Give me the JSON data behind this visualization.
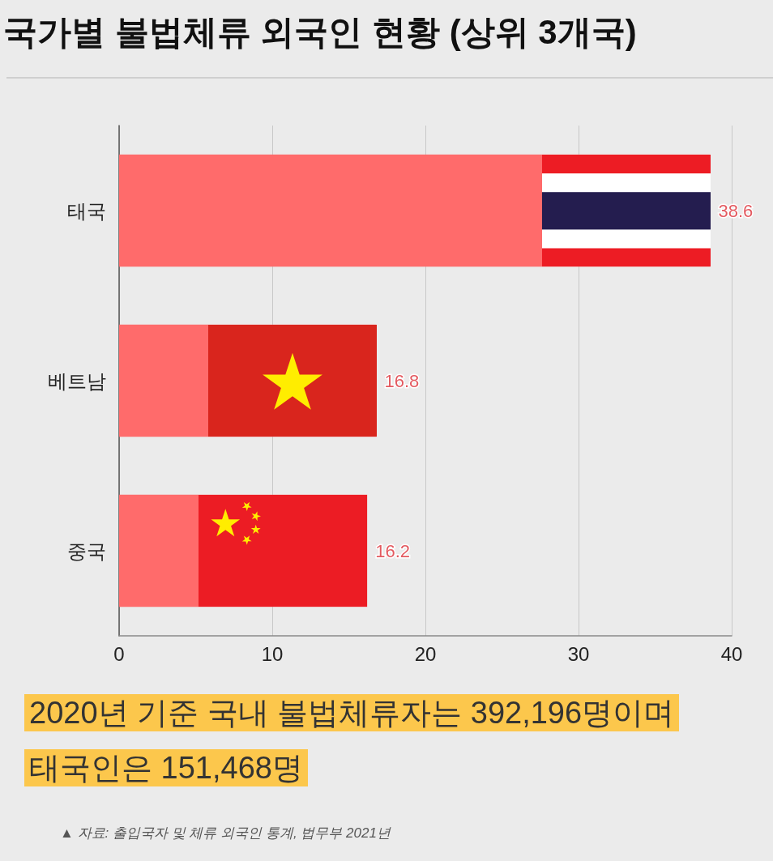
{
  "chart_data": {
    "type": "bar",
    "orientation": "horizontal",
    "title": "국가별 불법체류 외국인 현황 (상위 3개국)",
    "categories": [
      "태국",
      "베트남",
      "중국"
    ],
    "values": [
      38.6,
      16.8,
      16.2
    ],
    "color": "#ff6b6b",
    "xlim": [
      0,
      40
    ],
    "xticks": [
      0,
      10,
      20,
      30,
      40
    ],
    "grid": "x",
    "data_labels": true,
    "annotations": [
      "2020년 기준 국내 불법체류자는 392,196명이며\n태국인은 151,468명",
      "▲ 자료: 출입국자 및 체류 외국인 통계, 법무부 2021년"
    ]
  }
}
